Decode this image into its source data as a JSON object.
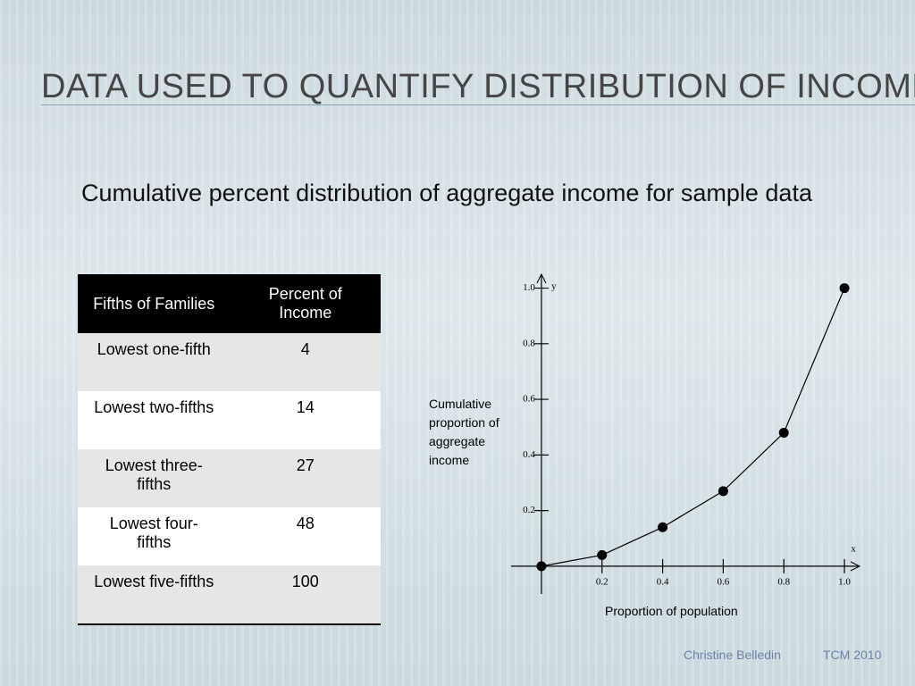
{
  "title": "DATA USED TO QUANTIFY DISTRIBUTION OF INCOME",
  "subtitle": "Cumulative percent distribution of aggregate income for sample data",
  "table": {
    "header": [
      "Fifths of Families",
      "Percent of Income"
    ],
    "rows": [
      [
        "Lowest one-fifth",
        "4"
      ],
      [
        "Lowest two-fifths",
        "14"
      ],
      [
        "Lowest three-fifths",
        "27"
      ],
      [
        "Lowest four-fifths",
        "48"
      ],
      [
        "Lowest five-fifths",
        "100"
      ]
    ]
  },
  "chart_data": {
    "type": "line",
    "x_label": "Proportion of population",
    "y_label": "Cumulative proportion of aggregate income",
    "x_axis_name": "x",
    "y_axis_name": "y",
    "x": [
      0,
      0.2,
      0.4,
      0.6,
      0.8,
      1.0
    ],
    "values": [
      0,
      0.04,
      0.14,
      0.27,
      0.48,
      1.0
    ],
    "color": "#000000",
    "xlim": [
      -0.1,
      1.05
    ],
    "ylim": [
      -0.1,
      1.05
    ],
    "xticks": [
      0.2,
      0.4,
      0.6,
      0.8,
      {
        "value": 1,
        "label": "1.0"
      }
    ],
    "yticks": [
      0.2,
      0.4,
      0.6,
      0.8,
      {
        "value": 1,
        "label": "1.0"
      }
    ]
  },
  "footer": {
    "author": "Christine Belledin",
    "course": "TCM 2010"
  }
}
